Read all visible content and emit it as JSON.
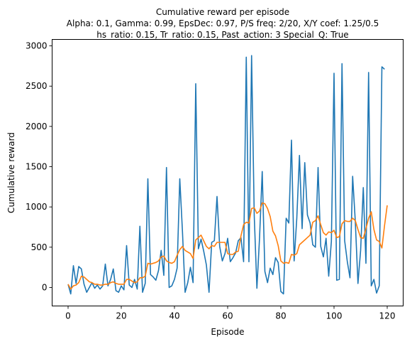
{
  "chart_data": {
    "type": "line",
    "title": {
      "line1": "Cumulative reward per episode",
      "line2": "Alpha: 0.1, Gamma: 0.99, EpsDec: 0.97, P/S freq: 2/20, X/Y coef: 1.25/0.5",
      "line3": "hs_ratio: 0.15, Tr_ratio: 0.15, Past_action: 3 Special_Q: True"
    },
    "xlabel": "Episode",
    "ylabel": "Cumulative reward",
    "xlim": [
      -6,
      126
    ],
    "ylim": [
      -230,
      3080
    ],
    "xticks": [
      0,
      20,
      40,
      60,
      80,
      100,
      120
    ],
    "yticks": [
      0,
      500,
      1000,
      1500,
      2000,
      2500,
      3000
    ],
    "grid": false,
    "series": [
      {
        "color": "#1f77b4",
        "values": [
          40,
          -80,
          270,
          50,
          260,
          230,
          40,
          -60,
          0,
          60,
          -10,
          30,
          -20,
          20,
          290,
          20,
          100,
          230,
          -40,
          -60,
          20,
          -30,
          520,
          30,
          0,
          100,
          -20,
          760,
          -60,
          50,
          1350,
          160,
          130,
          90,
          210,
          460,
          150,
          1490,
          0,
          20,
          100,
          240,
          1350,
          700,
          -60,
          60,
          250,
          60,
          2530,
          480,
          600,
          450,
          280,
          -60,
          560,
          580,
          1130,
          510,
          330,
          420,
          610,
          320,
          370,
          430,
          580,
          620,
          320,
          2860,
          320,
          2880,
          890,
          -10,
          620,
          1440,
          200,
          60,
          240,
          160,
          370,
          310,
          -50,
          -80,
          860,
          800,
          1830,
          330,
          860,
          1640,
          730,
          1550,
          900,
          800,
          530,
          500,
          1490,
          510,
          380,
          610,
          140,
          570,
          2660,
          90,
          100,
          2780,
          580,
          320,
          120,
          1380,
          820,
          50,
          460,
          1240,
          300,
          2670,
          20,
          100,
          -70,
          20,
          2740,
          2710
        ]
      },
      {
        "color": "#ff7f0e",
        "values": [
          40,
          -20,
          20,
          30,
          60,
          140,
          130,
          100,
          70,
          60,
          40,
          40,
          30,
          30,
          40,
          40,
          60,
          70,
          50,
          40,
          40,
          40,
          100,
          100,
          80,
          60,
          70,
          120,
          120,
          140,
          300,
          290,
          300,
          310,
          330,
          380,
          390,
          330,
          310,
          300,
          320,
          400,
          470,
          510,
          460,
          440,
          420,
          360,
          590,
          620,
          650,
          580,
          510,
          480,
          520,
          510,
          560,
          560,
          560,
          560,
          420,
          410,
          410,
          440,
          450,
          640,
          780,
          810,
          800,
          980,
          990,
          920,
          950,
          1050,
          1040,
          980,
          880,
          700,
          640,
          520,
          330,
          300,
          310,
          300,
          410,
          400,
          420,
          530,
          560,
          590,
          620,
          650,
          810,
          830,
          890,
          780,
          680,
          650,
          690,
          680,
          710,
          620,
          630,
          790,
          830,
          820,
          820,
          860,
          830,
          720,
          620,
          610,
          730,
          860,
          940,
          720,
          590,
          570,
          490,
          770,
          1020
        ]
      }
    ]
  }
}
